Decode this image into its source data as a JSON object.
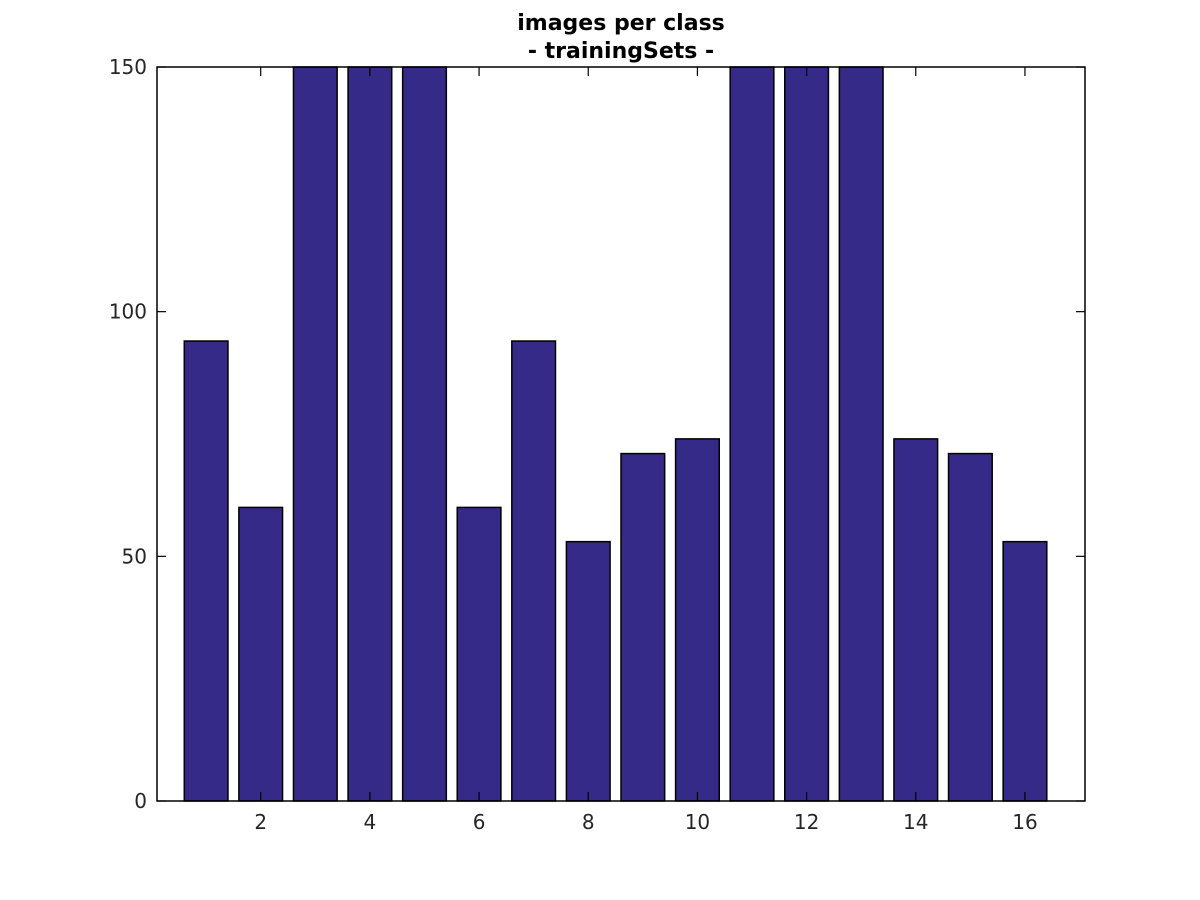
{
  "chart_data": {
    "type": "bar",
    "title": "images per class",
    "subtitle": "- trainingSets -",
    "xlabel": "",
    "ylabel": "",
    "categories": [
      1,
      2,
      3,
      4,
      5,
      6,
      7,
      8,
      9,
      10,
      11,
      12,
      13,
      14,
      15,
      16
    ],
    "values": [
      94,
      60,
      150,
      150,
      150,
      60,
      94,
      53,
      71,
      74,
      150,
      150,
      150,
      74,
      71,
      53
    ],
    "xlim": [
      0.1,
      17.1
    ],
    "ylim": [
      0,
      150
    ],
    "xticks": [
      2,
      4,
      6,
      8,
      10,
      12,
      14,
      16
    ],
    "yticks": [
      0,
      50,
      100,
      150
    ],
    "bar_color": "#352a87",
    "edge_color": "#000000",
    "grid": false,
    "legend": "none"
  }
}
